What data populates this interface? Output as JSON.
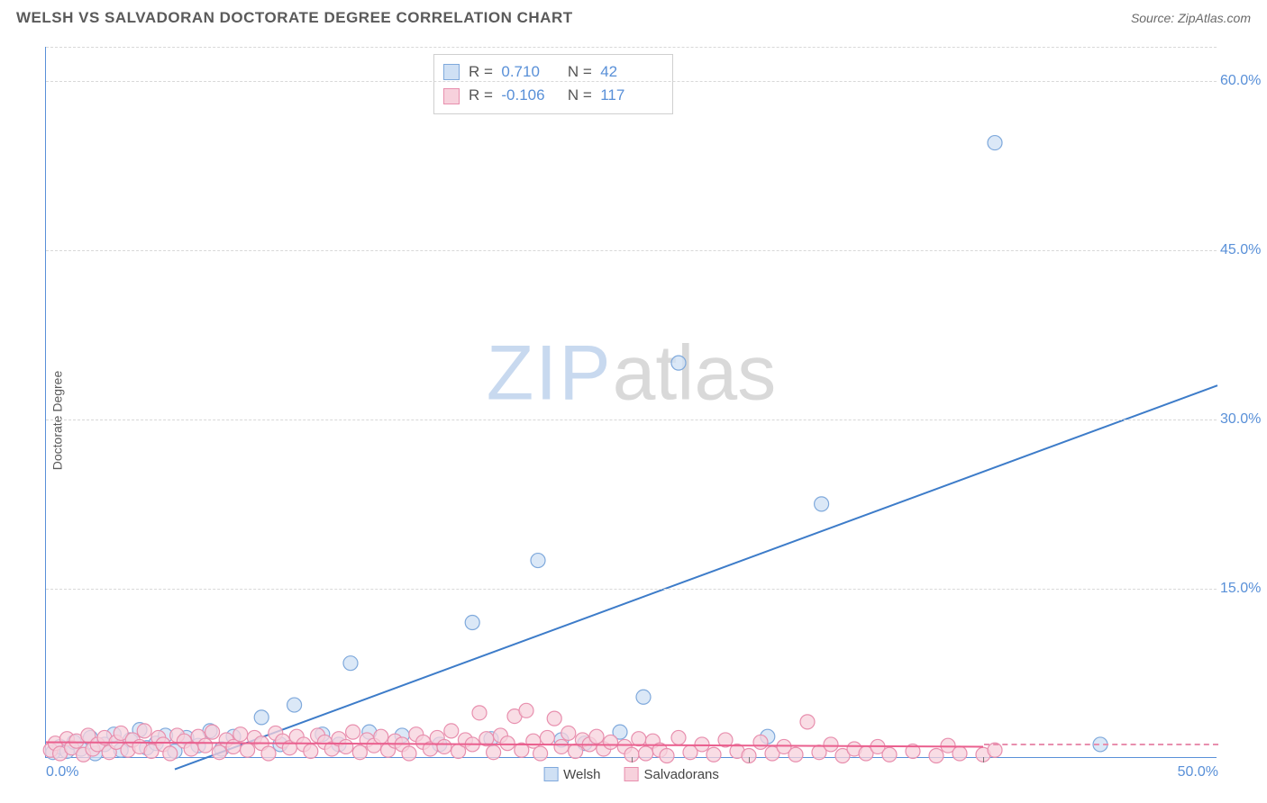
{
  "header": {
    "title": "WELSH VS SALVADORAN DOCTORATE DEGREE CORRELATION CHART",
    "source": "Source: ZipAtlas.com"
  },
  "ylabel": "Doctorate Degree",
  "watermark": {
    "part1": "ZIP",
    "part2": "atlas"
  },
  "chart": {
    "type": "scatter",
    "xlim": [
      0,
      50
    ],
    "ylim": [
      0,
      63
    ],
    "x_unit": "%",
    "y_unit": "%",
    "xtick_left": "0.0%",
    "xtick_right": "50.0%",
    "xtick_minor_positions": [
      25,
      30,
      40
    ],
    "yticks": [
      {
        "v": 15,
        "label": "15.0%"
      },
      {
        "v": 30,
        "label": "30.0%"
      },
      {
        "v": 45,
        "label": "45.0%"
      },
      {
        "v": 60,
        "label": "60.0%"
      }
    ],
    "grid_color": "#d8d8d8",
    "axis_color": "#5990d8",
    "background_color": "#ffffff",
    "marker_radius": 8,
    "marker_stroke_width": 1.2,
    "line_width": 2,
    "series": [
      {
        "name": "Welsh",
        "fill": "#cfe0f4",
        "stroke": "#7fa9dc",
        "line_color": "#3d7cc9",
        "R": "0.710",
        "N": "42",
        "trend": {
          "x1": 5.5,
          "y1": -1,
          "x2": 50,
          "y2": 33
        },
        "points": [
          [
            0.3,
            0.5
          ],
          [
            0.6,
            1.0
          ],
          [
            0.9,
            0.6
          ],
          [
            1.2,
            1.4
          ],
          [
            1.5,
            0.8
          ],
          [
            1.9,
            1.8
          ],
          [
            2.1,
            0.4
          ],
          [
            2.5,
            1.2
          ],
          [
            2.9,
            2.1
          ],
          [
            3.2,
            0.7
          ],
          [
            3.6,
            1.6
          ],
          [
            4.0,
            2.5
          ],
          [
            4.3,
            0.9
          ],
          [
            4.7,
            1.3
          ],
          [
            5.1,
            2.0
          ],
          [
            5.5,
            0.6
          ],
          [
            6.0,
            1.8
          ],
          [
            6.5,
            1.1
          ],
          [
            7.0,
            2.4
          ],
          [
            7.5,
            0.8
          ],
          [
            8.0,
            1.9
          ],
          [
            9.2,
            3.6
          ],
          [
            10.0,
            1.2
          ],
          [
            10.6,
            4.7
          ],
          [
            11.8,
            2.1
          ],
          [
            12.5,
            1.2
          ],
          [
            13.0,
            8.4
          ],
          [
            13.8,
            2.3
          ],
          [
            15.2,
            2.0
          ],
          [
            16.8,
            1.2
          ],
          [
            18.2,
            12.0
          ],
          [
            19.0,
            1.7
          ],
          [
            21.0,
            17.5
          ],
          [
            22.0,
            1.6
          ],
          [
            23.0,
            1.3
          ],
          [
            24.5,
            2.3
          ],
          [
            25.5,
            5.4
          ],
          [
            27.0,
            35.0
          ],
          [
            30.8,
            1.9
          ],
          [
            33.1,
            22.5
          ],
          [
            40.5,
            54.5
          ],
          [
            45.0,
            1.2
          ]
        ]
      },
      {
        "name": "Salvadorans",
        "fill": "#f7d1dc",
        "stroke": "#e88fae",
        "line_color": "#ea5f8e",
        "R": "-0.106",
        "N": "117",
        "trend": {
          "x1": 0,
          "y1": 1.4,
          "x2": 40,
          "y2": 1.0
        },
        "pink_dash_y": 1.2,
        "points": [
          [
            0.2,
            0.7
          ],
          [
            0.4,
            1.3
          ],
          [
            0.6,
            0.4
          ],
          [
            0.9,
            1.7
          ],
          [
            1.1,
            0.9
          ],
          [
            1.3,
            1.5
          ],
          [
            1.6,
            0.3
          ],
          [
            1.8,
            2.0
          ],
          [
            2.0,
            0.8
          ],
          [
            2.2,
            1.2
          ],
          [
            2.5,
            1.8
          ],
          [
            2.7,
            0.5
          ],
          [
            3.0,
            1.4
          ],
          [
            3.2,
            2.2
          ],
          [
            3.5,
            0.7
          ],
          [
            3.7,
            1.6
          ],
          [
            4.0,
            1.0
          ],
          [
            4.2,
            2.4
          ],
          [
            4.5,
            0.6
          ],
          [
            4.8,
            1.8
          ],
          [
            5.0,
            1.2
          ],
          [
            5.3,
            0.4
          ],
          [
            5.6,
            2.0
          ],
          [
            5.9,
            1.5
          ],
          [
            6.2,
            0.8
          ],
          [
            6.5,
            1.9
          ],
          [
            6.8,
            1.1
          ],
          [
            7.1,
            2.3
          ],
          [
            7.4,
            0.5
          ],
          [
            7.7,
            1.6
          ],
          [
            8.0,
            1.0
          ],
          [
            8.3,
            2.1
          ],
          [
            8.6,
            0.7
          ],
          [
            8.9,
            1.8
          ],
          [
            9.2,
            1.3
          ],
          [
            9.5,
            0.4
          ],
          [
            9.8,
            2.2
          ],
          [
            10.1,
            1.5
          ],
          [
            10.4,
            0.9
          ],
          [
            10.7,
            1.9
          ],
          [
            11.0,
            1.2
          ],
          [
            11.3,
            0.6
          ],
          [
            11.6,
            2.0
          ],
          [
            11.9,
            1.4
          ],
          [
            12.2,
            0.8
          ],
          [
            12.5,
            1.7
          ],
          [
            12.8,
            1.0
          ],
          [
            13.1,
            2.3
          ],
          [
            13.4,
            0.5
          ],
          [
            13.7,
            1.6
          ],
          [
            14.0,
            1.1
          ],
          [
            14.3,
            1.9
          ],
          [
            14.6,
            0.7
          ],
          [
            14.9,
            1.5
          ],
          [
            15.2,
            1.2
          ],
          [
            15.5,
            0.4
          ],
          [
            15.8,
            2.1
          ],
          [
            16.1,
            1.4
          ],
          [
            16.4,
            0.8
          ],
          [
            16.7,
            1.8
          ],
          [
            17.0,
            1.0
          ],
          [
            17.3,
            2.4
          ],
          [
            17.6,
            0.6
          ],
          [
            17.9,
            1.6
          ],
          [
            18.2,
            1.2
          ],
          [
            18.5,
            4.0
          ],
          [
            18.8,
            1.7
          ],
          [
            19.1,
            0.5
          ],
          [
            19.4,
            2.0
          ],
          [
            19.7,
            1.3
          ],
          [
            20.0,
            3.7
          ],
          [
            20.3,
            0.7
          ],
          [
            20.5,
            4.2
          ],
          [
            20.8,
            1.5
          ],
          [
            21.1,
            0.4
          ],
          [
            21.4,
            1.8
          ],
          [
            21.7,
            3.5
          ],
          [
            22.0,
            1.0
          ],
          [
            22.3,
            2.2
          ],
          [
            22.6,
            0.6
          ],
          [
            22.9,
            1.6
          ],
          [
            23.2,
            1.2
          ],
          [
            23.5,
            1.9
          ],
          [
            23.8,
            0.8
          ],
          [
            24.1,
            1.4
          ],
          [
            24.7,
            1.0
          ],
          [
            25.0,
            0.3
          ],
          [
            25.3,
            1.7
          ],
          [
            25.6,
            0.4
          ],
          [
            25.9,
            1.5
          ],
          [
            26.2,
            0.7
          ],
          [
            26.5,
            0.2
          ],
          [
            27.0,
            1.8
          ],
          [
            27.5,
            0.5
          ],
          [
            28.0,
            1.2
          ],
          [
            28.5,
            0.3
          ],
          [
            29.0,
            1.6
          ],
          [
            29.5,
            0.6
          ],
          [
            30.0,
            0.2
          ],
          [
            30.5,
            1.4
          ],
          [
            31.0,
            0.4
          ],
          [
            31.5,
            1.0
          ],
          [
            32.0,
            0.3
          ],
          [
            32.5,
            3.2
          ],
          [
            33.0,
            0.5
          ],
          [
            33.5,
            1.2
          ],
          [
            34.0,
            0.2
          ],
          [
            34.5,
            0.8
          ],
          [
            35.0,
            0.4
          ],
          [
            35.5,
            1.0
          ],
          [
            36.0,
            0.3
          ],
          [
            37.0,
            0.6
          ],
          [
            38.0,
            0.2
          ],
          [
            38.5,
            1.1
          ],
          [
            39.0,
            0.4
          ],
          [
            40.0,
            0.3
          ],
          [
            40.5,
            0.7
          ]
        ]
      }
    ]
  },
  "legend_bottom": [
    {
      "label": "Welsh",
      "fill": "#cfe0f4",
      "stroke": "#7fa9dc"
    },
    {
      "label": "Salvadorans",
      "fill": "#f7d1dc",
      "stroke": "#e88fae"
    }
  ],
  "legend_top": [
    {
      "fill": "#cfe0f4",
      "stroke": "#7fa9dc",
      "R_label": "R =",
      "R": "0.710",
      "N_label": "N =",
      "N": "42",
      "val_class": "val"
    },
    {
      "fill": "#f7d1dc",
      "stroke": "#e88fae",
      "R_label": "R =",
      "R": "-0.106",
      "N_label": "N =",
      "N": "117",
      "val_class": "val"
    }
  ]
}
